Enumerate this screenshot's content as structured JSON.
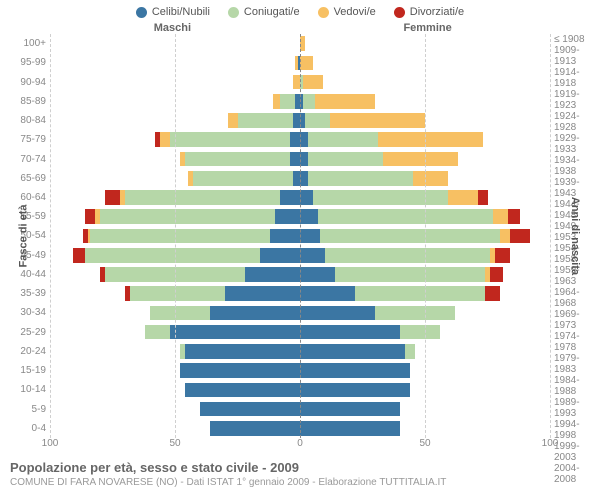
{
  "legend": [
    {
      "label": "Celibi/Nubili",
      "color": "#3b76a3"
    },
    {
      "label": "Coniugati/e",
      "color": "#b6d7a8"
    },
    {
      "label": "Vedovi/e",
      "color": "#f7c063"
    },
    {
      "label": "Divorziati/e",
      "color": "#c1271e"
    }
  ],
  "headers": {
    "male": "Maschi",
    "female": "Femmine"
  },
  "axis_titles": {
    "left": "Fasce di età",
    "right": "Anni di nascita"
  },
  "xaxis": {
    "max": 100,
    "ticks": [
      100,
      50,
      0,
      50,
      100
    ]
  },
  "grid_color": "#cfcfcf",
  "center_color": "#888888",
  "background": "#ffffff",
  "chart": {
    "type": "population-pyramid",
    "bar_height_ratio": 0.76,
    "rows": [
      {
        "age": "100+",
        "birth": "≤ 1908",
        "m": [
          0,
          0,
          0,
          0
        ],
        "f": [
          0,
          0,
          2,
          0
        ]
      },
      {
        "age": "95-99",
        "birth": "1909-1913",
        "m": [
          1,
          0,
          1,
          0
        ],
        "f": [
          0,
          0,
          5,
          0
        ]
      },
      {
        "age": "90-94",
        "birth": "1914-1918",
        "m": [
          0,
          0,
          3,
          0
        ],
        "f": [
          0,
          1,
          8,
          0
        ]
      },
      {
        "age": "85-89",
        "birth": "1919-1923",
        "m": [
          2,
          6,
          3,
          0
        ],
        "f": [
          1,
          5,
          24,
          0
        ]
      },
      {
        "age": "80-84",
        "birth": "1924-1928",
        "m": [
          3,
          22,
          4,
          0
        ],
        "f": [
          2,
          10,
          38,
          0
        ]
      },
      {
        "age": "75-79",
        "birth": "1929-1933",
        "m": [
          4,
          48,
          4,
          2
        ],
        "f": [
          3,
          28,
          42,
          0
        ]
      },
      {
        "age": "70-74",
        "birth": "1934-1938",
        "m": [
          4,
          42,
          2,
          0
        ],
        "f": [
          3,
          30,
          30,
          0
        ]
      },
      {
        "age": "65-69",
        "birth": "1939-1943",
        "m": [
          3,
          40,
          2,
          0
        ],
        "f": [
          3,
          42,
          14,
          0
        ]
      },
      {
        "age": "60-64",
        "birth": "1944-1948",
        "m": [
          8,
          62,
          2,
          6
        ],
        "f": [
          5,
          54,
          12,
          4
        ]
      },
      {
        "age": "55-59",
        "birth": "1949-1953",
        "m": [
          10,
          70,
          2,
          4
        ],
        "f": [
          7,
          70,
          6,
          5
        ]
      },
      {
        "age": "50-54",
        "birth": "1954-1958",
        "m": [
          12,
          72,
          1,
          2
        ],
        "f": [
          8,
          72,
          4,
          8
        ]
      },
      {
        "age": "45-49",
        "birth": "1959-1963",
        "m": [
          16,
          70,
          0,
          5
        ],
        "f": [
          10,
          66,
          2,
          6
        ]
      },
      {
        "age": "40-44",
        "birth": "1964-1968",
        "m": [
          22,
          56,
          0,
          2
        ],
        "f": [
          14,
          60,
          2,
          5
        ]
      },
      {
        "age": "35-39",
        "birth": "1969-1973",
        "m": [
          30,
          38,
          0,
          2
        ],
        "f": [
          22,
          52,
          0,
          6
        ]
      },
      {
        "age": "30-34",
        "birth": "1974-1978",
        "m": [
          36,
          24,
          0,
          0
        ],
        "f": [
          30,
          32,
          0,
          0
        ]
      },
      {
        "age": "25-29",
        "birth": "1979-1983",
        "m": [
          52,
          10,
          0,
          0
        ],
        "f": [
          40,
          16,
          0,
          0
        ]
      },
      {
        "age": "20-24",
        "birth": "1984-1988",
        "m": [
          46,
          2,
          0,
          0
        ],
        "f": [
          42,
          4,
          0,
          0
        ]
      },
      {
        "age": "15-19",
        "birth": "1989-1993",
        "m": [
          48,
          0,
          0,
          0
        ],
        "f": [
          44,
          0,
          0,
          0
        ]
      },
      {
        "age": "10-14",
        "birth": "1994-1998",
        "m": [
          46,
          0,
          0,
          0
        ],
        "f": [
          44,
          0,
          0,
          0
        ]
      },
      {
        "age": "5-9",
        "birth": "1999-2003",
        "m": [
          40,
          0,
          0,
          0
        ],
        "f": [
          40,
          0,
          0,
          0
        ]
      },
      {
        "age": "0-4",
        "birth": "2004-2008",
        "m": [
          36,
          0,
          0,
          0
        ],
        "f": [
          40,
          0,
          0,
          0
        ]
      }
    ]
  },
  "footer": {
    "title": "Popolazione per età, sesso e stato civile - 2009",
    "sub": "COMUNE DI FARA NOVARESE (NO) - Dati ISTAT 1° gennaio 2009 - Elaborazione TUTTITALIA.IT"
  }
}
